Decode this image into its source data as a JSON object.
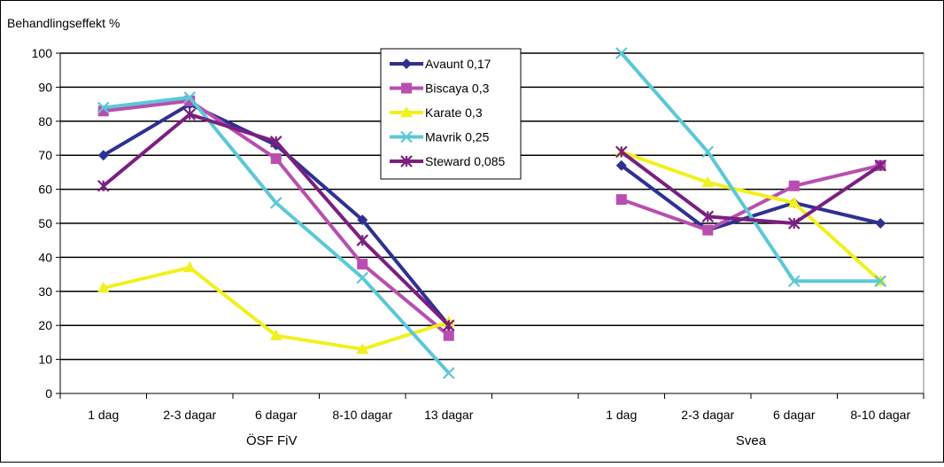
{
  "chart_data": {
    "type": "line",
    "ylabel": "Behandlingseffekt %",
    "ylim": [
      0,
      100
    ],
    "yticks": [
      0,
      10,
      20,
      30,
      40,
      50,
      60,
      70,
      80,
      90,
      100
    ],
    "grid": true,
    "legend_position": "top-center",
    "groups": [
      {
        "name": "ÖSF FiV",
        "categories": [
          "1 dag",
          "2-3 dagar",
          "6 dagar",
          "8-10 dagar",
          "13 dagar"
        ]
      },
      {
        "name": "Svea",
        "categories": [
          "1 dag",
          "2-3 dagar",
          "6 dagar",
          "8-10 dagar"
        ]
      }
    ],
    "series": [
      {
        "name": "Avaunt 0,17",
        "color": "#2E3192",
        "marker": "diamond",
        "values": [
          [
            70,
            85,
            73,
            51,
            20
          ],
          [
            67,
            48,
            56,
            50
          ]
        ]
      },
      {
        "name": "Biscaya 0,3",
        "color": "#B84FB0",
        "marker": "square",
        "values": [
          [
            83,
            86,
            69,
            38,
            17
          ],
          [
            57,
            48,
            61,
            67
          ]
        ]
      },
      {
        "name": "Karate 0,3",
        "color": "#F2F01E",
        "marker": "triangle",
        "values": [
          [
            31,
            37,
            17,
            13,
            21
          ],
          [
            71,
            62,
            56,
            33
          ]
        ]
      },
      {
        "name": "Mavrik 0,25",
        "color": "#5CC8D8",
        "marker": "x",
        "values": [
          [
            84,
            87,
            56,
            34,
            6
          ],
          [
            100,
            71,
            33,
            33
          ]
        ]
      },
      {
        "name": "Steward 0,085",
        "color": "#7B1F80",
        "marker": "star",
        "values": [
          [
            61,
            82,
            74,
            45,
            20
          ],
          [
            71,
            52,
            50,
            67
          ]
        ]
      }
    ]
  }
}
